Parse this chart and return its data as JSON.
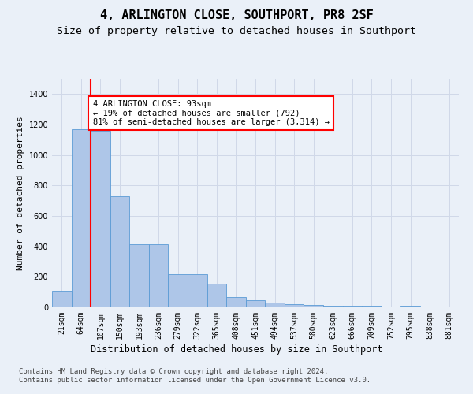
{
  "title": "4, ARLINGTON CLOSE, SOUTHPORT, PR8 2SF",
  "subtitle": "Size of property relative to detached houses in Southport",
  "xlabel": "Distribution of detached houses by size in Southport",
  "ylabel": "Number of detached properties",
  "categories": [
    "21sqm",
    "64sqm",
    "107sqm",
    "150sqm",
    "193sqm",
    "236sqm",
    "279sqm",
    "322sqm",
    "365sqm",
    "408sqm",
    "451sqm",
    "494sqm",
    "537sqm",
    "580sqm",
    "623sqm",
    "666sqm",
    "709sqm",
    "752sqm",
    "795sqm",
    "838sqm",
    "881sqm"
  ],
  "values": [
    108,
    1170,
    1160,
    730,
    415,
    415,
    215,
    215,
    155,
    65,
    48,
    30,
    20,
    15,
    12,
    12,
    12,
    0,
    12,
    0,
    0
  ],
  "bar_color": "#aec6e8",
  "bar_edge_color": "#5b9bd5",
  "grid_color": "#d0d8e8",
  "background_color": "#eaf0f8",
  "property_line_x": 1.5,
  "property_line_color": "red",
  "annotation_text": "4 ARLINGTON CLOSE: 93sqm\n← 19% of detached houses are smaller (792)\n81% of semi-detached houses are larger (3,314) →",
  "annotation_box_color": "white",
  "annotation_box_edge": "red",
  "footer": "Contains HM Land Registry data © Crown copyright and database right 2024.\nContains public sector information licensed under the Open Government Licence v3.0.",
  "ylim": [
    0,
    1500
  ],
  "title_fontsize": 11,
  "subtitle_fontsize": 9.5,
  "axis_label_fontsize": 8.5,
  "tick_fontsize": 7,
  "footer_fontsize": 6.5,
  "ylabel_fontsize": 8
}
